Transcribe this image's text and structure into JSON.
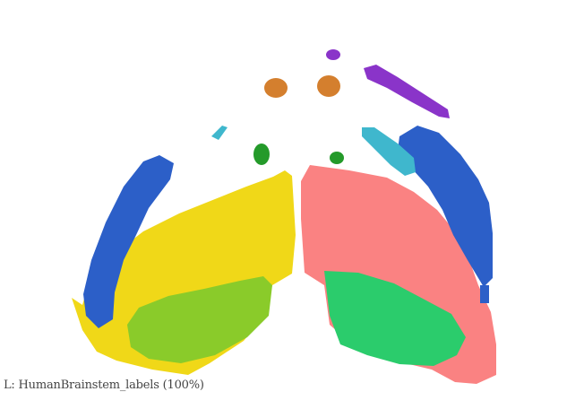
{
  "viewer": {
    "layer_caption": "L: HumanBrainstem_labels (100%)"
  },
  "regions": [
    {
      "name": "left-yellow-region",
      "color": "#f0d818"
    },
    {
      "name": "left-lightgreen-region",
      "color": "#8acb2a"
    },
    {
      "name": "left-blue-band",
      "color": "#2c5fc8"
    },
    {
      "name": "right-pink-region",
      "color": "#fa8282"
    },
    {
      "name": "right-green-region",
      "color": "#2bcc6c"
    },
    {
      "name": "right-blue-band",
      "color": "#2c5fc8"
    },
    {
      "name": "right-cyan-streak",
      "color": "#3fb7cd"
    },
    {
      "name": "left-cyan-streak",
      "color": "#3fb7cd"
    },
    {
      "name": "left-dark-green-blob",
      "color": "#249a2a"
    },
    {
      "name": "right-dark-green-blob",
      "color": "#249a2a"
    },
    {
      "name": "left-orange-blob",
      "color": "#d47f2e"
    },
    {
      "name": "right-orange-blob",
      "color": "#d47f2e"
    },
    {
      "name": "purple-streak",
      "color": "#8a34c9"
    },
    {
      "name": "purple-dot",
      "color": "#8a34c9"
    }
  ]
}
